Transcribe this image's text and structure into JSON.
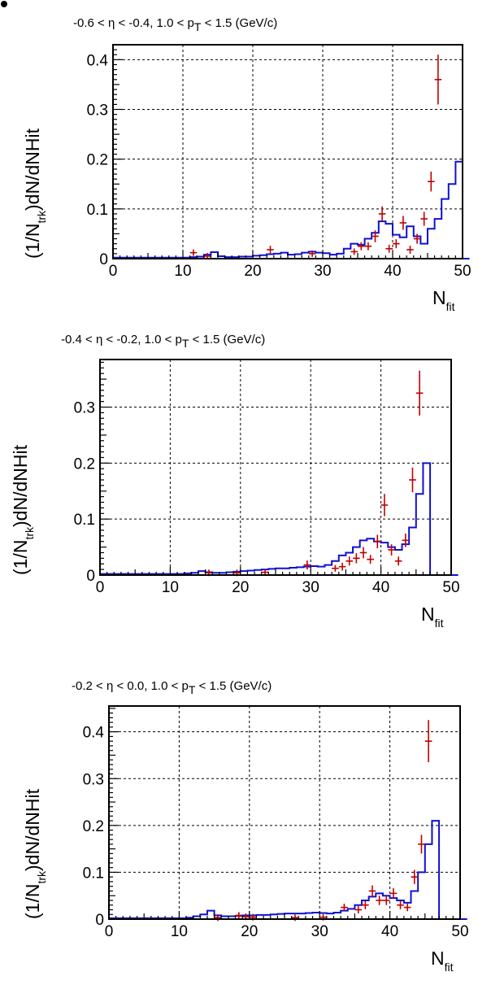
{
  "chart_data": [
    {
      "type": "histogram",
      "title": "-0.6 < η < -0.4, 1.0 < p_T < 1.5 (GeV/c)",
      "title_parts": {
        "pre": "-0.6 < η < -0.4, 1.0 < p",
        "sub": "T",
        "post": " < 1.5 (GeV/c)"
      },
      "xlabel": {
        "main": "N",
        "sub": "fit"
      },
      "ylabel": {
        "pre": "(1/N",
        "sub": "trk",
        "post": ")dN/dNHit"
      },
      "xlim": [
        0,
        50
      ],
      "ylim": [
        0,
        0.43
      ],
      "xticks": [
        "0",
        "10",
        "20",
        "30",
        "40",
        "50"
      ],
      "yticks": [
        {
          "v": 0,
          "label": "0"
        },
        {
          "v": 0.1,
          "label": "0.1"
        },
        {
          "v": 0.2,
          "label": "0.2"
        },
        {
          "v": 0.3,
          "label": "0.3"
        },
        {
          "v": 0.4,
          "label": "0.4"
        }
      ],
      "grid": true,
      "mc_color": "#1010d0",
      "data_color": "#c00000",
      "mc_hist": {
        "bins_start": 0,
        "bin_width": 1,
        "values": [
          0.002,
          0.002,
          0.002,
          0.002,
          0.002,
          0.002,
          0.002,
          0.002,
          0.002,
          0.002,
          0.002,
          0.003,
          0.004,
          0.008,
          0.013,
          0.005,
          0.003,
          0.003,
          0.004,
          0.004,
          0.006,
          0.007,
          0.009,
          0.01,
          0.012,
          0.008,
          0.009,
          0.012,
          0.014,
          0.012,
          0.011,
          0.008,
          0.01,
          0.02,
          0.03,
          0.028,
          0.04,
          0.052,
          0.075,
          0.07,
          0.048,
          0.043,
          0.065,
          0.045,
          0.03,
          0.06,
          0.08,
          0.12,
          0.15,
          0.195,
          0.0
        ]
      },
      "data_points": [
        {
          "x": 11.5,
          "y": 0.012,
          "err": 0.006
        },
        {
          "x": 13.5,
          "y": 0.005,
          "err": 0.004
        },
        {
          "x": 22.5,
          "y": 0.018,
          "err": 0.008
        },
        {
          "x": 28.5,
          "y": 0.01,
          "err": 0.005
        },
        {
          "x": 34.5,
          "y": 0.014,
          "err": 0.006
        },
        {
          "x": 35.5,
          "y": 0.025,
          "err": 0.008
        },
        {
          "x": 36.5,
          "y": 0.025,
          "err": 0.008
        },
        {
          "x": 37.5,
          "y": 0.045,
          "err": 0.012
        },
        {
          "x": 38.5,
          "y": 0.09,
          "err": 0.015
        },
        {
          "x": 39.5,
          "y": 0.02,
          "err": 0.008
        },
        {
          "x": 40.5,
          "y": 0.03,
          "err": 0.009
        },
        {
          "x": 41.5,
          "y": 0.072,
          "err": 0.014
        },
        {
          "x": 42.5,
          "y": 0.018,
          "err": 0.008
        },
        {
          "x": 43.5,
          "y": 0.04,
          "err": 0.01
        },
        {
          "x": 44.5,
          "y": 0.08,
          "err": 0.014
        },
        {
          "x": 45.5,
          "y": 0.155,
          "err": 0.02
        },
        {
          "x": 46.5,
          "y": 0.36,
          "err": 0.05
        }
      ]
    },
    {
      "type": "histogram",
      "title": "-0.4 < η < -0.2, 1.0 < p_T < 1.5 (GeV/c)",
      "title_parts": {
        "pre": "-0.4 < η < -0.2, 1.0 < p",
        "sub": "T",
        "post": " < 1.5 (GeV/c)"
      },
      "xlabel": {
        "main": "N",
        "sub": "fit"
      },
      "ylabel": {
        "pre": "(1/N",
        "sub": "trk",
        "post": ")dN/dNHit"
      },
      "xlim": [
        0,
        50
      ],
      "ylim": [
        0,
        0.385
      ],
      "xticks": [
        "0",
        "10",
        "20",
        "30",
        "40",
        "50"
      ],
      "yticks": [
        {
          "v": 0,
          "label": "0"
        },
        {
          "v": 0.1,
          "label": "0.1"
        },
        {
          "v": 0.2,
          "label": "0.2"
        },
        {
          "v": 0.3,
          "label": "0.3"
        }
      ],
      "grid": true,
      "mc_color": "#1010d0",
      "data_color": "#c00000",
      "mc_hist": {
        "bins_start": 0,
        "bin_width": 1,
        "values": [
          0.002,
          0.002,
          0.002,
          0.002,
          0.002,
          0.002,
          0.002,
          0.002,
          0.002,
          0.002,
          0.002,
          0.002,
          0.003,
          0.004,
          0.007,
          0.005,
          0.004,
          0.004,
          0.005,
          0.006,
          0.007,
          0.008,
          0.009,
          0.01,
          0.011,
          0.012,
          0.012,
          0.013,
          0.014,
          0.015,
          0.016,
          0.015,
          0.018,
          0.025,
          0.035,
          0.04,
          0.05,
          0.062,
          0.065,
          0.06,
          0.058,
          0.05,
          0.045,
          0.055,
          0.085,
          0.145,
          0.2,
          0.0,
          0.0,
          0.0,
          0.0
        ]
      },
      "data_points": [
        {
          "x": 15.5,
          "y": 0.004,
          "err": 0.004
        },
        {
          "x": 19.5,
          "y": 0.004,
          "err": 0.004
        },
        {
          "x": 23.5,
          "y": 0.005,
          "err": 0.004
        },
        {
          "x": 29.5,
          "y": 0.018,
          "err": 0.008
        },
        {
          "x": 33.5,
          "y": 0.012,
          "err": 0.006
        },
        {
          "x": 34.5,
          "y": 0.015,
          "err": 0.007
        },
        {
          "x": 35.5,
          "y": 0.025,
          "err": 0.008
        },
        {
          "x": 36.5,
          "y": 0.03,
          "err": 0.009
        },
        {
          "x": 37.5,
          "y": 0.04,
          "err": 0.01
        },
        {
          "x": 38.5,
          "y": 0.028,
          "err": 0.008
        },
        {
          "x": 39.5,
          "y": 0.06,
          "err": 0.012
        },
        {
          "x": 40.5,
          "y": 0.125,
          "err": 0.02
        },
        {
          "x": 41.5,
          "y": 0.045,
          "err": 0.01
        },
        {
          "x": 42.5,
          "y": 0.025,
          "err": 0.008
        },
        {
          "x": 43.5,
          "y": 0.062,
          "err": 0.012
        },
        {
          "x": 44.5,
          "y": 0.17,
          "err": 0.022
        },
        {
          "x": 45.5,
          "y": 0.325,
          "err": 0.04
        }
      ]
    },
    {
      "type": "histogram",
      "title": "-0.2 < η < 0.0, 1.0 < p_T < 1.5 (GeV/c)",
      "title_parts": {
        "pre": "-0.2 < η < 0.0, 1.0 < p",
        "sub": "T",
        "post": " < 1.5 (GeV/c)"
      },
      "xlabel": {
        "main": "N",
        "sub": "fit"
      },
      "ylabel": {
        "pre": "(1/N",
        "sub": "trk",
        "post": ")dN/dNHit"
      },
      "xlim": [
        0,
        50
      ],
      "ylim": [
        0,
        0.455
      ],
      "xticks": [
        "0",
        "10",
        "20",
        "30",
        "40",
        "50"
      ],
      "yticks": [
        {
          "v": 0,
          "label": "0"
        },
        {
          "v": 0.1,
          "label": "0.1"
        },
        {
          "v": 0.2,
          "label": "0.2"
        },
        {
          "v": 0.3,
          "label": "0.3"
        },
        {
          "v": 0.4,
          "label": "0.4"
        }
      ],
      "grid": true,
      "mc_color": "#1010d0",
      "data_color": "#c00000",
      "mc_hist": {
        "bins_start": 0,
        "bin_width": 1,
        "values": [
          0.002,
          0.002,
          0.002,
          0.002,
          0.002,
          0.002,
          0.002,
          0.002,
          0.002,
          0.002,
          0.002,
          0.003,
          0.006,
          0.01,
          0.018,
          0.008,
          0.006,
          0.006,
          0.007,
          0.008,
          0.008,
          0.009,
          0.009,
          0.01,
          0.011,
          0.012,
          0.012,
          0.012,
          0.013,
          0.014,
          0.013,
          0.012,
          0.014,
          0.018,
          0.022,
          0.03,
          0.04,
          0.048,
          0.055,
          0.05,
          0.045,
          0.04,
          0.035,
          0.06,
          0.1,
          0.16,
          0.21,
          0.0,
          0.0,
          0.0,
          0.0
        ]
      },
      "data_points": [
        {
          "x": 15.5,
          "y": 0.003,
          "err": 0.003
        },
        {
          "x": 18.5,
          "y": 0.008,
          "err": 0.005
        },
        {
          "x": 19.5,
          "y": 0.005,
          "err": 0.004
        },
        {
          "x": 20.5,
          "y": 0.004,
          "err": 0.004
        },
        {
          "x": 26.5,
          "y": 0.003,
          "err": 0.003
        },
        {
          "x": 30.5,
          "y": 0.004,
          "err": 0.004
        },
        {
          "x": 33.5,
          "y": 0.025,
          "err": 0.008
        },
        {
          "x": 35.5,
          "y": 0.02,
          "err": 0.008
        },
        {
          "x": 36.5,
          "y": 0.03,
          "err": 0.009
        },
        {
          "x": 37.5,
          "y": 0.06,
          "err": 0.012
        },
        {
          "x": 38.5,
          "y": 0.04,
          "err": 0.01
        },
        {
          "x": 39.5,
          "y": 0.04,
          "err": 0.01
        },
        {
          "x": 40.5,
          "y": 0.055,
          "err": 0.011
        },
        {
          "x": 41.5,
          "y": 0.03,
          "err": 0.009
        },
        {
          "x": 42.5,
          "y": 0.025,
          "err": 0.008
        },
        {
          "x": 43.5,
          "y": 0.09,
          "err": 0.015
        },
        {
          "x": 44.5,
          "y": 0.16,
          "err": 0.02
        },
        {
          "x": 45.5,
          "y": 0.38,
          "err": 0.045
        }
      ]
    }
  ]
}
